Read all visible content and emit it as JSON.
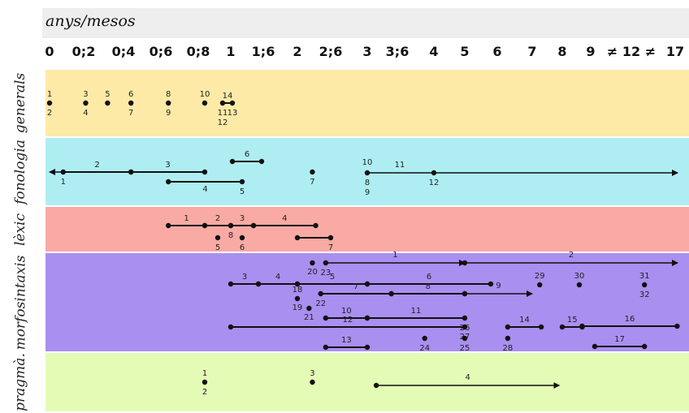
{
  "axis": {
    "title": "anys/mesos",
    "ticks": [
      "0",
      "0;2",
      "0;4",
      "0;6",
      "0;8",
      "1",
      "1;6",
      "2",
      "2;6",
      "3",
      "3;6",
      "4",
      "5",
      "6",
      "7",
      "8",
      "9",
      "≠ 12 ≠",
      "17"
    ]
  },
  "rows": [
    {
      "id": "generals",
      "label": "generals",
      "color": "#fdeaa7"
    },
    {
      "id": "fonologia",
      "label": "fonologia",
      "color": "#aeeef3"
    },
    {
      "id": "lexic",
      "label": "lèxic",
      "color": "#f9aaa5"
    },
    {
      "id": "morfosintaxis",
      "label": "morfosintaxis",
      "color": "#a98ff0"
    },
    {
      "id": "pragmatica",
      "label": "pragmà.",
      "color": "#e4fbb6"
    }
  ],
  "chart_data": {
    "type": "timeline",
    "title": "",
    "xlabel": "anys/mesos",
    "x_categories": [
      "0",
      "0;2",
      "0;4",
      "0;6",
      "0;8",
      "1",
      "1;6",
      "2",
      "2;6",
      "3",
      "3;6",
      "4",
      "5",
      "6",
      "7",
      "8",
      "9",
      "12",
      "17"
    ],
    "rows": [
      {
        "row": "generals",
        "points": [
          {
            "label": "1",
            "at": 0,
            "sub": "2"
          },
          {
            "label": "3",
            "at": 1.05,
            "sub": "4"
          },
          {
            "label": "5",
            "at": 1.6,
            "sub": ""
          },
          {
            "label": "6",
            "at": 2.2,
            "sub": "7"
          },
          {
            "label": "8",
            "at": 3.2,
            "sub": "9"
          },
          {
            "label": "10",
            "at": 4.2,
            "sub": ""
          }
        ],
        "segments": [
          {
            "label": "14",
            "from": 4.75,
            "to": 5.05,
            "sub_start": "11",
            "sub_start2": "12",
            "sub_end": "13"
          }
        ],
        "arrows": []
      },
      {
        "row": "fonologia",
        "points": [
          {
            "label": "",
            "at": 7.45,
            "sub": "7"
          }
        ],
        "segments": [
          {
            "label": "2",
            "from": 0.4,
            "to": 2.2,
            "sub_start": "1",
            "sub_end": ""
          },
          {
            "label": "3",
            "from": 2.2,
            "to": 4.2,
            "sub_start": "",
            "sub_end": ""
          },
          {
            "label": "6",
            "from": 5.05,
            "to": 5.95,
            "sub_start": "",
            "sub_end": ""
          },
          {
            "label": "",
            "from": 3.2,
            "to": 5.35,
            "sub_start": "",
            "sub_mid": "4",
            "sub_end": "5"
          }
        ],
        "arrows": [
          {
            "label": "",
            "from": 0.4,
            "to": 0,
            "direction": "left"
          },
          {
            "label": "11",
            "from": 9,
            "to": 18.25,
            "start_label": "10",
            "sub_start": "8",
            "sub_start2": "9",
            "mid_label": "12"
          }
        ]
      },
      {
        "row": "lexic",
        "points": [
          {
            "label": "",
            "at": 4.6,
            "sub": "5"
          },
          {
            "label": "",
            "at": 5.35,
            "sub": "6"
          }
        ],
        "segments": [
          {
            "label": "1",
            "from": 3.2,
            "to": 4.2,
            "sub_start": "",
            "sub_end": ""
          },
          {
            "label": "2",
            "from": 4.2,
            "to": 5.0,
            "sub_start": "",
            "sub_end": "8"
          },
          {
            "label": "3",
            "from": 5.0,
            "to": 5.7,
            "sub_start": "",
            "sub_end": ""
          },
          {
            "label": "4",
            "from": 5.7,
            "to": 7.55,
            "sub_start": "",
            "sub_end": ""
          },
          {
            "label": "",
            "from": 7.0,
            "to": 8.0,
            "sub_start": "",
            "sub_end": "7"
          }
        ],
        "arrows": []
      },
      {
        "row": "morfosintaxis",
        "points": [
          {
            "label": "",
            "at": 7.45,
            "sub": "20"
          },
          {
            "label": "18",
            "at": 7.0,
            "sub": "19"
          },
          {
            "label": "",
            "at": 7.35,
            "sub": "21"
          },
          {
            "label": "29",
            "at": 14.25,
            "sub": ""
          },
          {
            "label": "30",
            "at": 15.6,
            "sub": ""
          },
          {
            "label": "31",
            "at": 17.3,
            "sub": "32"
          },
          {
            "label": "",
            "at": 10.75,
            "sub": "24"
          },
          {
            "label": "",
            "at": 12.0,
            "sub": "25"
          },
          {
            "label": "",
            "at": 13.3,
            "sub": "28"
          }
        ],
        "segments": [
          {
            "label": "3",
            "from": 5.0,
            "to": 5.85,
            "sub_start": "",
            "sub_end": ""
          },
          {
            "label": "4",
            "from": 5.85,
            "to": 7.0,
            "sub_start": "",
            "sub_end": ""
          },
          {
            "label": "5",
            "from": 7.0,
            "to": 9.0,
            "sub_start": "",
            "sub_end": ""
          },
          {
            "label": "6",
            "from": 9.0,
            "to": 12.8,
            "sub_start": "",
            "sub_end": ""
          },
          {
            "label": "7",
            "from": 7.7,
            "to": 9.8,
            "sub_start": "22",
            "sub_end": ""
          },
          {
            "label": "8",
            "from": 9.8,
            "to": 12.0,
            "sub_start": "",
            "sub_end": ""
          },
          {
            "label": "10",
            "from": 7.85,
            "to": 9.0,
            "sub_start": "",
            "sub_end": ""
          },
          {
            "label": "11",
            "from": 9.0,
            "to": 12.0,
            "sub_start": "",
            "sub_end": "26"
          },
          {
            "label": "12",
            "from": 5.0,
            "to": 12.0,
            "sub_start": "",
            "sub_end": "27"
          },
          {
            "label": "13",
            "from": 7.85,
            "to": 9.0,
            "sub_start": "",
            "sub_end": ""
          },
          {
            "label": "14",
            "from": 13.3,
            "to": 14.3,
            "sub_start": "",
            "sub_end": ""
          },
          {
            "label": "15",
            "from": 15.0,
            "to": 15.7,
            "sub_start": "",
            "sub_end": ""
          },
          {
            "label": "16",
            "from": 15.7,
            "to": 18.2,
            "sub_start": "",
            "sub_end": ""
          },
          {
            "label": "17",
            "from": 16.1,
            "to": 17.3,
            "sub_start": "",
            "sub_end": ""
          }
        ],
        "arrows": [
          {
            "label": "1",
            "from": 7.85,
            "to": 12.0,
            "start_label": "",
            "sub_start": "23",
            "mid_label": ""
          },
          {
            "label": "2",
            "from": 12.0,
            "to": 18.25,
            "start_label": "",
            "sub_start": "",
            "mid_label": ""
          },
          {
            "label": "9",
            "from": 12.0,
            "to": 14.0,
            "start_label": "",
            "sub_start": "",
            "mid_label": ""
          }
        ]
      },
      {
        "row": "pragmatica",
        "points": [
          {
            "label": "1",
            "at": 4.2,
            "sub": "2"
          },
          {
            "label": "3",
            "at": 7.45,
            "sub": ""
          }
        ],
        "segments": [],
        "arrows": [
          {
            "label": "4",
            "from": 9.3,
            "to": 14.9,
            "start_label": "",
            "sub_start": "",
            "mid_label": ""
          }
        ]
      }
    ]
  }
}
